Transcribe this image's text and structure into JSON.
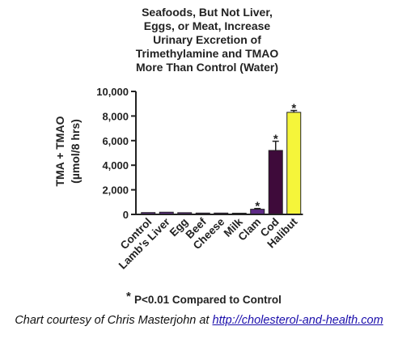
{
  "chart_data": {
    "type": "bar",
    "title_lines": [
      "Seafoods, But Not Liver,",
      "Eggs, or Meat, Increase",
      "Urinary Excretion of",
      "Trimethylamine and TMAO",
      "More Than Control (Water)"
    ],
    "ylabel_lines": [
      "TMA + TMAO",
      "(µmol/8 hrs)"
    ],
    "ylim": [
      0,
      10000
    ],
    "yticks": [
      0,
      2000,
      4000,
      6000,
      8000,
      10000
    ],
    "ytick_labels": [
      "0",
      "2,000",
      "4,000",
      "6,000",
      "8,000",
      "10,000"
    ],
    "categories": [
      "Control",
      "Lamb's Liver",
      "Egg",
      "Beef",
      "Cheese",
      "Milk",
      "Clam",
      "Cod",
      "Halibut"
    ],
    "values": [
      150,
      180,
      140,
      110,
      110,
      100,
      420,
      5200,
      8300
    ],
    "errors": [
      0,
      0,
      0,
      0,
      0,
      0,
      60,
      750,
      150
    ],
    "significant": [
      false,
      false,
      false,
      false,
      false,
      false,
      true,
      true,
      true
    ],
    "bar_colors": [
      "#5e2a86",
      "#5e2a86",
      "#5e2a86",
      "#5e2a86",
      "#5e2a86",
      "#5e2a86",
      "#5e2a86",
      "#3e0a3a",
      "#f5f53a"
    ],
    "significance_marker": "*",
    "footnote": "P<0.01 Compared to Control",
    "grid": false
  },
  "credit": {
    "text": "Chart courtesy of Chris Masterjohn at ",
    "link_text": "http://cholesterol-and-health.com"
  }
}
